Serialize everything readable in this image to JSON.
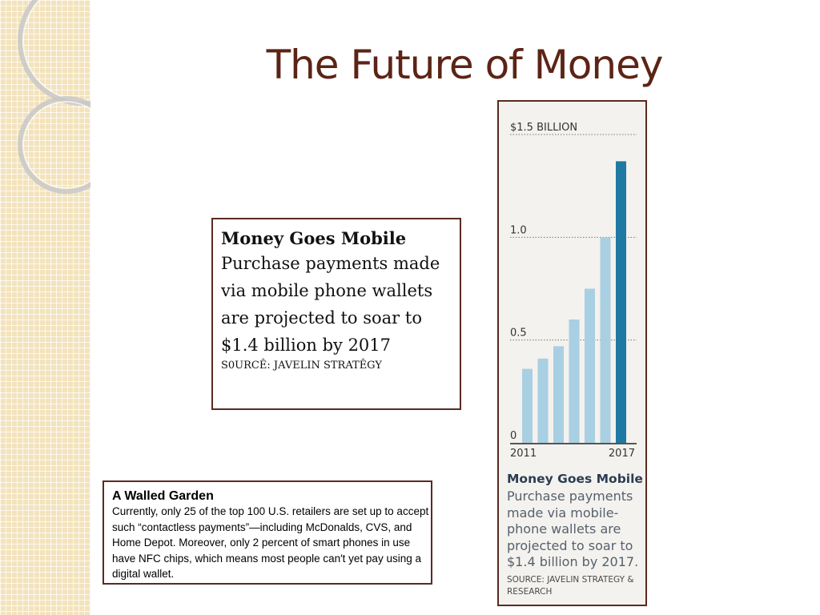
{
  "slide": {
    "title": "The Future of Money"
  },
  "caption": {
    "heading": "Money Goes Mobile",
    "body": "Purchase payments made via mobile phone wallets are projected to soar to $1.4 billion by 2017",
    "source": "S0URCÊ: JAVELIN STRATÊGY"
  },
  "walled_garden": {
    "heading": "A Walled Garden",
    "body": "Currently, only 25 of the top 100 U.S. retailers are set up to accept such “contactless payments”—including McDonalds, CVS, and Home Depot. Moreover, only 2 percent of smart phones in use have NFC chips, which means most people can′t yet pay using a digital wallet."
  },
  "chart_panel": {
    "title": "Money Goes Mobile",
    "subtitle": "Purchase payments made via mobile-phone wallets are projected to soar to $1.4 billion by 2017.",
    "source": "SOURCE: JAVELIN STRATEGY & RESEARCH"
  },
  "chart_data": {
    "type": "bar",
    "categories": [
      "2011",
      "2012",
      "2013",
      "2014",
      "2015",
      "2016",
      "2017"
    ],
    "x_tick_labels": [
      "2011",
      "",
      "",
      "",
      "",
      "",
      "2017"
    ],
    "values": [
      0.36,
      0.41,
      0.47,
      0.6,
      0.75,
      1.0,
      1.37
    ],
    "ylim": [
      0,
      1.5
    ],
    "y_ticks": [
      0,
      0.5,
      1.0,
      1.5
    ],
    "y_tick_labels": [
      "0",
      "0.5",
      "1.0",
      "$1.5 BILLION"
    ],
    "grid": true,
    "colors": {
      "bars": "#a9cfe2",
      "highlight_bar": "#1f7aa3",
      "grid": "#777777",
      "labels": "#333333"
    }
  }
}
